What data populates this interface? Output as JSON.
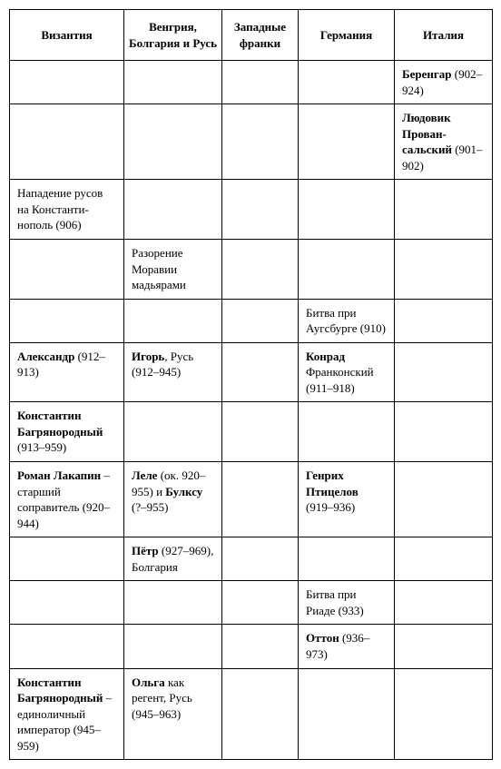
{
  "headers": [
    "Византия",
    "Венгрия, Болгария и Русь",
    "Западные франки",
    "Германия",
    "Италия"
  ],
  "rows": [
    {
      "c1": "",
      "c2": "",
      "c3": "",
      "c4": "",
      "c5_bold": "Беренгар",
      "c5_rest": " (902–924)"
    },
    {
      "c1": "",
      "c2": "",
      "c3": "",
      "c4": "",
      "c5_bold": "Людовик Прован­сальский",
      "c5_rest": " (901–902)"
    },
    {
      "c1_plain": "Нападение русов на Константи­нополь (906)",
      "c2": "",
      "c3": "",
      "c4": "",
      "c5": ""
    },
    {
      "c1": "",
      "c2_plain": "Разорение Моравии мадьярами",
      "c3": "",
      "c4": "",
      "c5": ""
    },
    {
      "c1": "",
      "c2": "",
      "c3": "",
      "c4_plain": "Битва при Аугсбурге (910)",
      "c5": ""
    },
    {
      "c1_bold": "Александр",
      "c1_rest": " (912–913)",
      "c2_bold": "Игорь",
      "c2_rest": ", Русь (912–945)",
      "c3": "",
      "c4_bold": "Конрад",
      "c4_rest": " Франконский (911–918)",
      "c5": ""
    },
    {
      "c1_bold": "Константин Багрянородный",
      "c1_rest": " (913–959)",
      "c2": "",
      "c3": "",
      "c4": "",
      "c5": ""
    },
    {
      "c1_bold": "Роман Лакапин",
      "c1_rest": " – старший соправитель (920–944)",
      "c2_bold": "Леле",
      "c2_rest": " (ок. 920–955) и ",
      "c2_bold2": "Булксу",
      "c2_rest2": " (?–955)",
      "c3": "",
      "c4_bold": "Генрих Птицелов",
      "c4_rest": " (919–936)",
      "c5": ""
    },
    {
      "c1": "",
      "c2_bold": "Пётр",
      "c2_rest": " (927–969), Болгария",
      "c3": "",
      "c4": "",
      "c5": ""
    },
    {
      "c1": "",
      "c2": "",
      "c3": "",
      "c4_plain": "Битва при Риаде (933)",
      "c5": ""
    },
    {
      "c1": "",
      "c2": "",
      "c3": "",
      "c4_bold": "Оттон",
      "c4_rest": " (936–973)",
      "c5": ""
    },
    {
      "c1_bold": "Константин Багрянородный",
      "c1_rest": " – единоличный император (945–959)",
      "c2_bold": "Ольга",
      "c2_rest": " как регент, Русь (945–963)",
      "c3": "",
      "c4": "",
      "c5": ""
    }
  ]
}
